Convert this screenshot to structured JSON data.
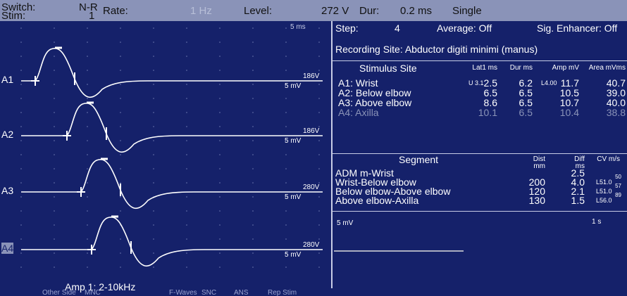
{
  "top_bar": {
    "switch_label": "Switch:",
    "stim_label": "Stim:",
    "mode": "N-R",
    "mode_num": "1",
    "rate_label": "Rate:",
    "rate": "1 Hz",
    "level_label": "Level:",
    "level": "272 V",
    "dur_label": "Dur:",
    "dur": "0.2 ms",
    "single": "Single"
  },
  "waveform_panel": {
    "timebase": "5 ms",
    "traces": [
      {
        "label": "A1",
        "volt": "186V",
        "gain": "5 mV"
      },
      {
        "label": "A2",
        "volt": "186V",
        "gain": "5 mV"
      },
      {
        "label": "A3",
        "volt": "280V",
        "gain": "5 mV"
      },
      {
        "label": "A4",
        "volt": "280V",
        "gain": "5 mV"
      }
    ],
    "amp_filter": "Amp 1: 2-10kHz"
  },
  "settings": {
    "step_label": "Step:",
    "step": "4",
    "average": "Average: Off",
    "sig_enhancer": "Sig. Enhancer: Off",
    "recording_site": "Recording Site: Abductor digiti minimi (manus)"
  },
  "stimulus_table": {
    "headers": [
      "Stimulus Site",
      "Lat1 ms",
      "Dur ms",
      "Amp mV",
      "Area mVms"
    ],
    "rows": [
      {
        "site": "A1: Wrist",
        "lat_marker": "U 3.1",
        "lat": "2.5",
        "dur": "6.2",
        "amp_marker": "L4.00",
        "amp": "11.7",
        "area": "40.7"
      },
      {
        "site": "A2: Below elbow",
        "lat": "6.5",
        "dur": "6.5",
        "amp": "10.5",
        "area": "39.0"
      },
      {
        "site": "A3: Above elbow",
        "lat": "8.6",
        "dur": "6.5",
        "amp": "10.7",
        "area": "40.0"
      },
      {
        "site": "A4: Axilla",
        "lat": "10.1",
        "dur": "6.5",
        "amp": "10.4",
        "area": "38.8"
      }
    ]
  },
  "segment_table": {
    "headers": [
      "Segment",
      "Dist mm",
      "Diff ms",
      "CV m/s"
    ],
    "rows": [
      {
        "segment": "ADM m-Wrist",
        "diff": "2.5"
      },
      {
        "segment": "Wrist-Below elbow",
        "dist": "200",
        "diff": "4.0",
        "cv_marker": "L51.0",
        "cv": "50"
      },
      {
        "segment": "Below elbow-Above elbow",
        "dist": "120",
        "diff": "2.1",
        "cv_marker": "L51.0",
        "cv": "57"
      },
      {
        "segment": "Above elbow-Axilla",
        "dist": "130",
        "diff": "1.5",
        "cv_marker": "L56.0",
        "cv": "89"
      }
    ]
  },
  "lower_panel": {
    "gain": "5 mV",
    "timebase": "1 s"
  },
  "tabs": [
    "Other Side",
    "MNC",
    "F-Waves",
    "SNC",
    "ANS",
    "Rep Stim"
  ]
}
